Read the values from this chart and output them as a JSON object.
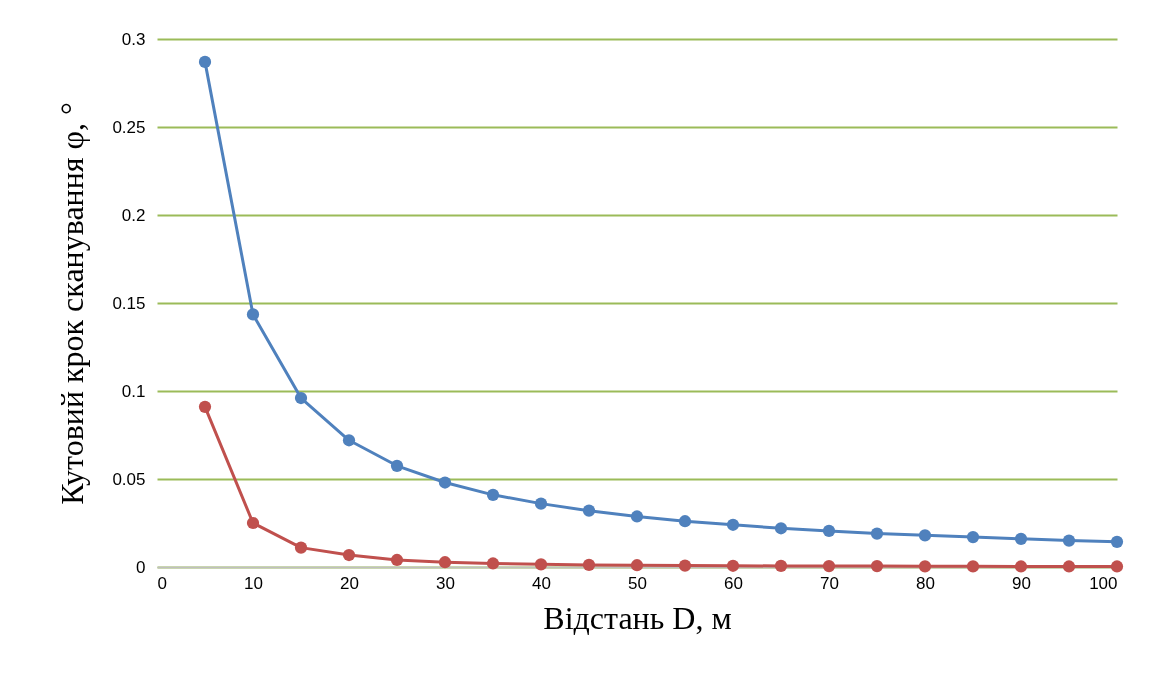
{
  "chart_data": {
    "type": "line",
    "xlabel": "Відстань D, м",
    "ylabel": "Кутовий крок сканування φ, °",
    "x": [
      5,
      10,
      15,
      20,
      25,
      30,
      35,
      40,
      45,
      50,
      55,
      60,
      65,
      70,
      75,
      80,
      85,
      90,
      95,
      100
    ],
    "series": [
      {
        "color": "#4f81bd",
        "values": [
          0.287,
          0.1435,
          0.096,
          0.072,
          0.0575,
          0.048,
          0.041,
          0.036,
          0.032,
          0.0287,
          0.026,
          0.024,
          0.022,
          0.0205,
          0.019,
          0.018,
          0.017,
          0.016,
          0.015,
          0.0143
        ]
      },
      {
        "color": "#c0504d",
        "values": [
          0.091,
          0.025,
          0.011,
          0.0068,
          0.004,
          0.0027,
          0.002,
          0.0015,
          0.0012,
          0.001,
          0.0008,
          0.0007,
          0.0006,
          0.0005,
          0.0005,
          0.0004,
          0.0004,
          0.0003,
          0.0003,
          0.0003
        ]
      }
    ],
    "xlim": [
      0,
      100
    ],
    "xticks": [
      0,
      10,
      20,
      30,
      40,
      50,
      60,
      70,
      80,
      90,
      100
    ],
    "ylim": [
      0,
      0.3
    ],
    "yticks": [
      0,
      0.05,
      0.1,
      0.15,
      0.2,
      0.25,
      0.3
    ],
    "grid": "y",
    "marker": "circle",
    "line_style": "solid"
  }
}
